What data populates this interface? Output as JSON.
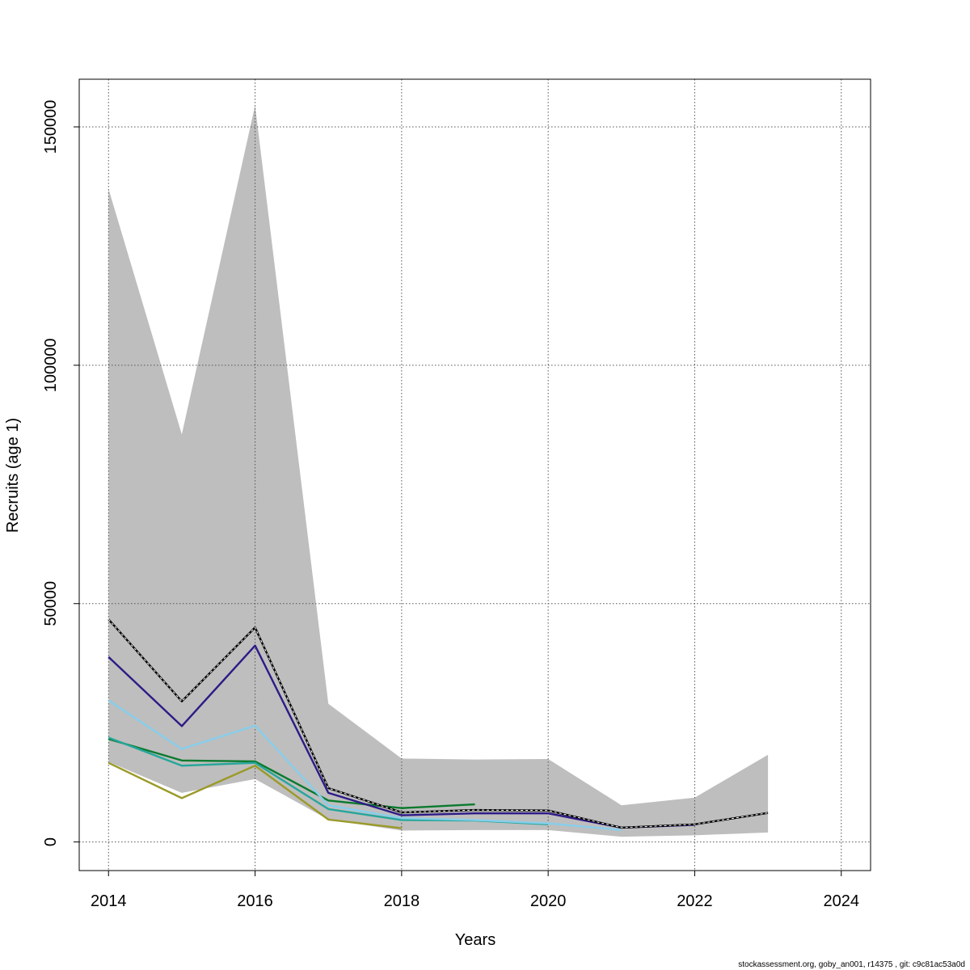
{
  "chart_data": {
    "type": "line",
    "xlabel": "Years",
    "ylabel": "Recruits (age 1)",
    "xlim": [
      2013.6,
      2024.4
    ],
    "ylim": [
      -6000,
      160000
    ],
    "x_ticks": [
      2014,
      2016,
      2018,
      2020,
      2022,
      2024
    ],
    "x_tick_labels": [
      "2014",
      "2016",
      "2018",
      "2020",
      "2022",
      "2024"
    ],
    "y_ticks": [
      0,
      50000,
      100000,
      150000
    ],
    "y_tick_labels": [
      "0",
      "50000",
      "100000",
      "150000"
    ],
    "grid": true,
    "confidence_band": {
      "color": "#bebebe",
      "x": [
        2014,
        2015,
        2016,
        2017,
        2018,
        2019,
        2020,
        2021,
        2022,
        2023
      ],
      "upper": [
        137000,
        85500,
        154500,
        29000,
        17500,
        17300,
        17400,
        7700,
        9300,
        18300
      ],
      "lower": [
        16800,
        10300,
        13200,
        4700,
        2400,
        2500,
        2500,
        1100,
        1400,
        2000
      ]
    },
    "series": [
      {
        "color": "#000000",
        "dashed_overlay": true,
        "x": [
          2014,
          2015,
          2016,
          2017,
          2018,
          2019,
          2020,
          2021,
          2022,
          2023
        ],
        "values": [
          46700,
          29500,
          45000,
          11300,
          6200,
          6700,
          6600,
          3000,
          3700,
          6100
        ]
      },
      {
        "color": "#2e1a87",
        "x": [
          2014,
          2015,
          2016,
          2017,
          2018,
          2019,
          2020,
          2021,
          2022
        ],
        "values": [
          38800,
          24300,
          41200,
          10300,
          5600,
          6000,
          6000,
          3000,
          3600
        ]
      },
      {
        "color": "#87ceeb",
        "x": [
          2014,
          2015,
          2016,
          2017,
          2018,
          2019,
          2020,
          2021
        ],
        "values": [
          29700,
          19500,
          24400,
          7700,
          5000,
          4600,
          3900,
          2500
        ]
      },
      {
        "color": "#26a69a",
        "x": [
          2014,
          2015,
          2016,
          2017,
          2018,
          2019,
          2020
        ],
        "values": [
          21900,
          16000,
          16600,
          6900,
          4600,
          4500,
          3700
        ]
      },
      {
        "color": "#0a7a2e",
        "x": [
          2014,
          2015,
          2016,
          2017,
          2018,
          2019
        ],
        "values": [
          21600,
          17100,
          16900,
          8700,
          7100,
          7900
        ]
      },
      {
        "color": "#9b9a2a",
        "x": [
          2014,
          2015,
          2016,
          2017,
          2018
        ],
        "values": [
          16600,
          9200,
          16000,
          4700,
          2900
        ]
      }
    ]
  },
  "footer": "stockassessment.org, goby_an001, r14375 , git: c9c81ac53a0d"
}
